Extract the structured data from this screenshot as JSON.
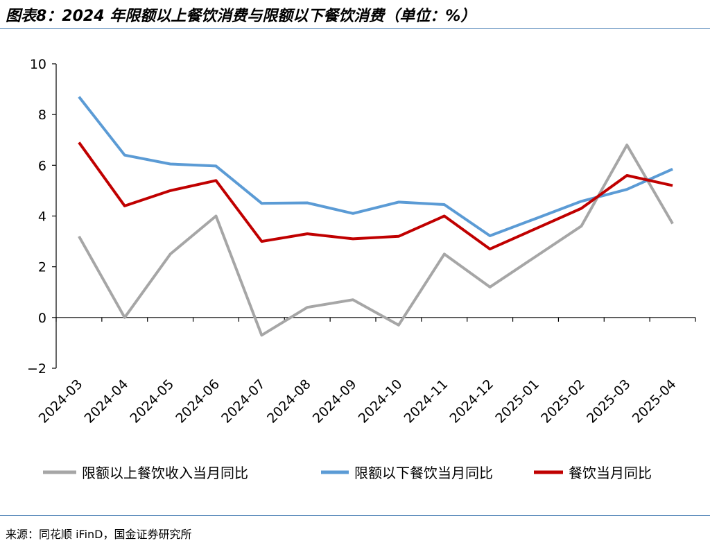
{
  "header": {
    "title": "图表8：2024 年限额以上餐饮消费与限额以下餐饮消费（单位：%）"
  },
  "footer": {
    "source": "来源：同花顺 iFinD，国金证券研究所"
  },
  "colors": {
    "rule": "#4a7fb5"
  },
  "chart_data": {
    "type": "line",
    "title": "",
    "xlabel": "",
    "ylabel": "",
    "ylim": [
      -2,
      10
    ],
    "yticks": [
      -2,
      0,
      2,
      4,
      6,
      8,
      10
    ],
    "grid": false,
    "legend_position": "bottom",
    "categories": [
      "2024-03",
      "2024-04",
      "2024-05",
      "2024-06",
      "2024-07",
      "2024-08",
      "2024-09",
      "2024-10",
      "2024-11",
      "2024-12",
      "2025-01",
      "2025-02",
      "2025-03",
      "2025-04"
    ],
    "series": [
      {
        "name": "限额以上餐饮收入当月同比",
        "color": "#a6a6a6",
        "values": [
          3.2,
          0.0,
          2.5,
          4.0,
          -0.7,
          0.4,
          0.7,
          -0.3,
          2.5,
          1.2,
          2.4,
          3.6,
          6.8,
          3.7
        ]
      },
      {
        "name": "限额以下餐饮当月同比",
        "color": "#5b9bd5",
        "values": [
          8.7,
          6.4,
          6.05,
          5.97,
          4.5,
          4.52,
          4.1,
          4.55,
          4.45,
          3.22,
          3.9,
          4.58,
          5.05,
          5.85
        ]
      },
      {
        "name": "餐饮当月同比",
        "color": "#c00000",
        "values": [
          6.9,
          4.4,
          5.0,
          5.4,
          3.0,
          3.3,
          3.1,
          3.2,
          4.0,
          2.7,
          3.5,
          4.3,
          5.6,
          5.2
        ]
      }
    ]
  }
}
